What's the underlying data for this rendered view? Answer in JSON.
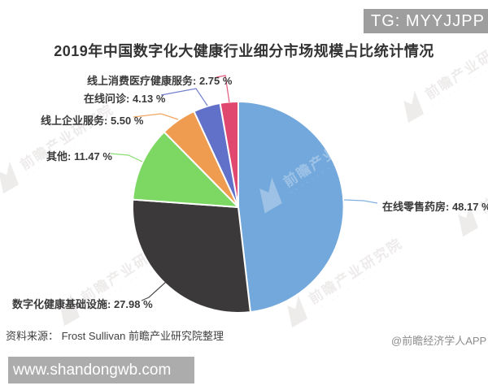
{
  "badge": {
    "text": "TG: MYYJJPP"
  },
  "chart_data": {
    "type": "pie",
    "title": "2019年中国数字化大健康行业细分市场规模占比统计情况",
    "unit": "%",
    "direction": "clockwise",
    "start_angle_deg": 0,
    "legend_position": "none",
    "slices": [
      {
        "name": "在线零售药房",
        "value": 48.17,
        "label": "在线零售药房: 48.17 %",
        "color": "#73a8dc"
      },
      {
        "name": "数字化健康基础设施",
        "value": 27.98,
        "label": "数字化健康基础设施: 27.98 %",
        "color": "#3b393a"
      },
      {
        "name": "其他",
        "value": 11.47,
        "label": "其他: 11.47 %",
        "color": "#7cd862"
      },
      {
        "name": "线上企业服务",
        "value": 5.5,
        "label": "线上企业服务: 5.50 %",
        "color": "#f09c50"
      },
      {
        "name": "在线问诊",
        "value": 4.13,
        "label": "在线问诊: 4.13 %",
        "color": "#6170c9"
      },
      {
        "name": "线上消费医疗健康服务",
        "value": 2.75,
        "label": "线上消费医疗健康服务: 2.75 %",
        "color": "#e0486f"
      }
    ]
  },
  "footer": {
    "source": "资料来源： Frost Sullivan 前瞻产业研究院整理",
    "credit": "@前瞻经济学人APP"
  },
  "bottom_bar": {
    "url": "www.shandongwb.com"
  },
  "watermark": {
    "text": "前瞻产业研究院"
  }
}
